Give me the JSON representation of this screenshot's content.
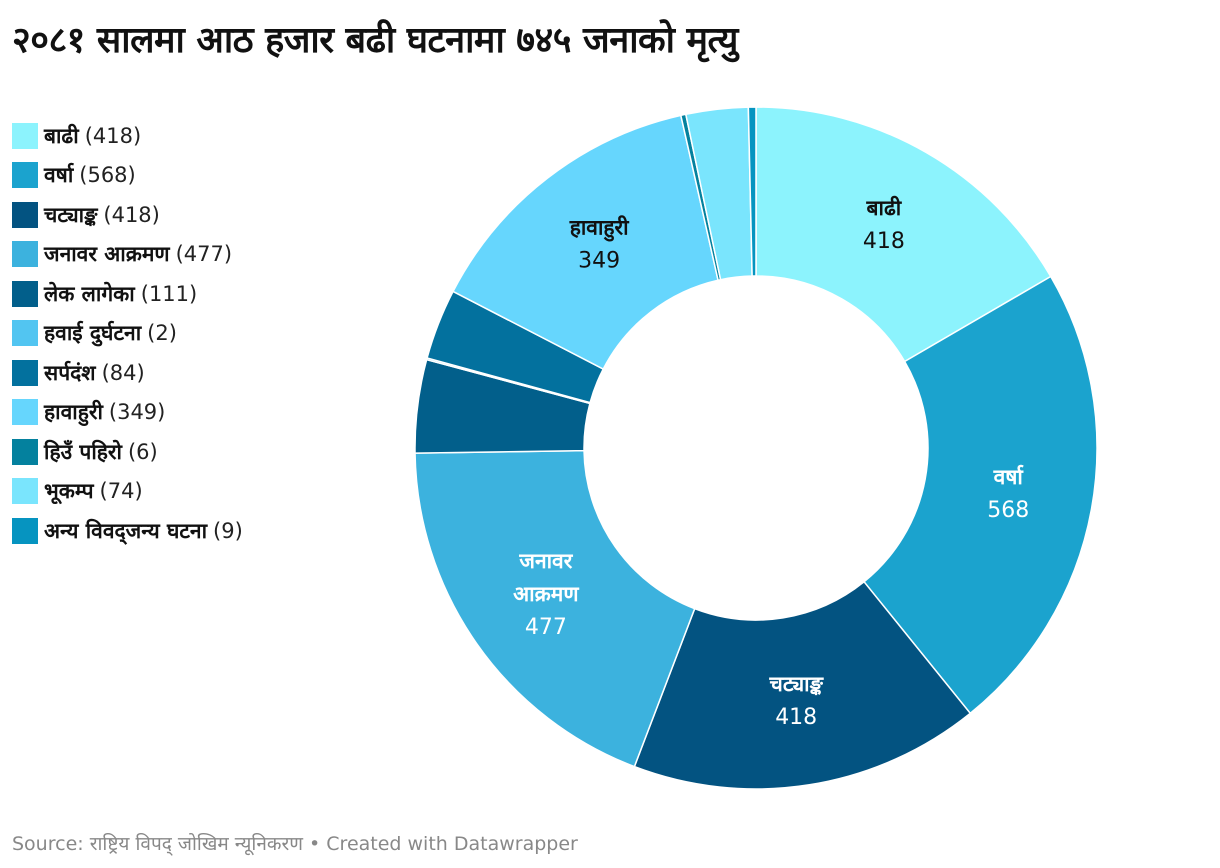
{
  "title": "२०८१ सालमा आठ हजार बढी घटनामा ७४५ जनाको मृत्यु",
  "chart_data": {
    "type": "pie",
    "variant": "donut",
    "legend_position": "left",
    "segments": [
      {
        "label": "बाढी",
        "value": 418,
        "color": "#8cf3fd",
        "label_lines": [
          "बाढी"
        ],
        "label_dark": true
      },
      {
        "label": "वर्षा",
        "value": 568,
        "color": "#1ba3ce",
        "label_lines": [
          "वर्षा"
        ],
        "label_dark": false
      },
      {
        "label": "चट्याङ्क",
        "value": 418,
        "color": "#035381",
        "label_lines": [
          "चट्याङ्क"
        ],
        "label_dark": false
      },
      {
        "label": "जनावर आक्रमण",
        "value": 477,
        "color": "#3cb2de",
        "label_lines": [
          "जनावर",
          "आक्रमण"
        ],
        "label_dark": false
      },
      {
        "label": "लेक लागेका",
        "value": 111,
        "color": "#025f8b",
        "label_lines": null,
        "label_dark": false
      },
      {
        "label": "हवाई दुर्घटना",
        "value": 2,
        "color": "#52c5f1",
        "label_lines": null,
        "label_dark": false
      },
      {
        "label": "सर्पदंश",
        "value": 84,
        "color": "#03719e",
        "label_lines": null,
        "label_dark": false
      },
      {
        "label": "हावाहुरी",
        "value": 349,
        "color": "#66d6fd",
        "label_lines": [
          "हावाहुरी"
        ],
        "label_dark": true
      },
      {
        "label": "हिउँ पहिरो",
        "value": 6,
        "color": "#04819e",
        "label_lines": null,
        "label_dark": false
      },
      {
        "label": "भूकम्प",
        "value": 74,
        "color": "#7ae5fd",
        "label_lines": null,
        "label_dark": false
      },
      {
        "label": "अन्य विवद्‌जन्य घटना",
        "value": 9,
        "color": "#0694c0",
        "label_lines": null,
        "label_dark": false
      }
    ]
  },
  "footer": {
    "source_label": "Source:",
    "source": "राष्ट्रिय विपद् जोखिम न्यूनिकरण",
    "separator": "•",
    "credit": "Created with Datawrapper"
  }
}
